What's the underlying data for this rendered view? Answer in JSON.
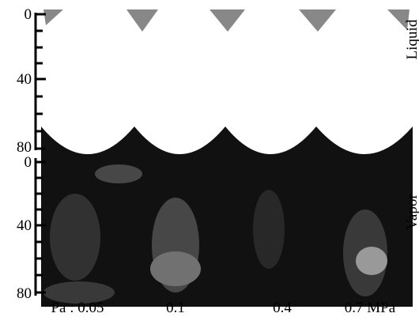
{
  "figure": {
    "axes": [
      {
        "ticks": [
          "0",
          "40",
          "80"
        ]
      },
      {
        "ticks": [
          "0",
          "40",
          "80"
        ]
      }
    ],
    "side_labels": [
      "Liquid",
      "Vapor"
    ],
    "pressures": [
      "Pa : 0.05",
      "0.1",
      "0.4",
      "0.7 MPa"
    ]
  }
}
